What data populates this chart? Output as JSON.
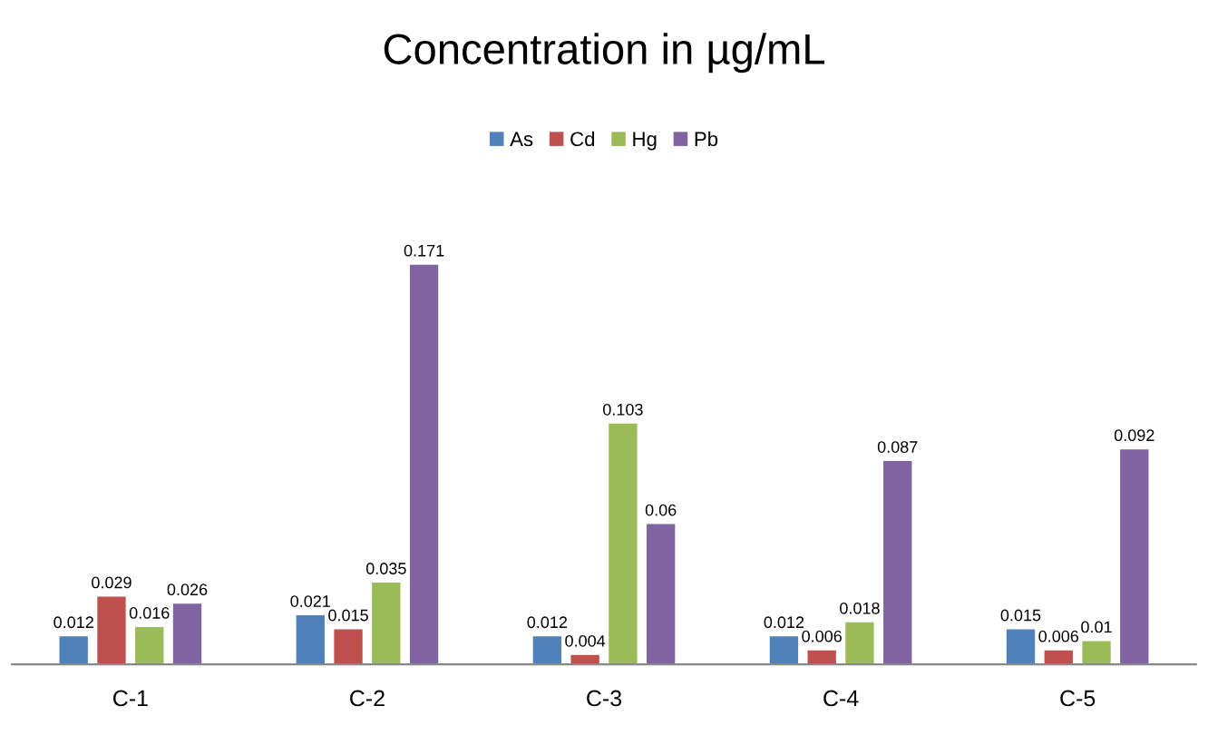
{
  "chart_data": {
    "type": "bar",
    "title": "Concentration in µg/mL",
    "categories": [
      "C-1",
      "C-2",
      "C-3",
      "C-4",
      "C-5"
    ],
    "series": [
      {
        "name": "As",
        "color": "#4f81bd",
        "values": [
          0.012,
          0.021,
          0.012,
          0.012,
          0.015
        ]
      },
      {
        "name": "Cd",
        "color": "#c0504d",
        "values": [
          0.029,
          0.015,
          0.004,
          0.006,
          0.006
        ]
      },
      {
        "name": "Hg",
        "color": "#9bbb59",
        "values": [
          0.016,
          0.035,
          0.103,
          0.018,
          0.01
        ]
      },
      {
        "name": "Pb",
        "color": "#8064a2",
        "values": [
          0.026,
          0.171,
          0.06,
          0.087,
          0.092
        ]
      }
    ],
    "data_labels": true,
    "legend": "top",
    "grid": false
  }
}
